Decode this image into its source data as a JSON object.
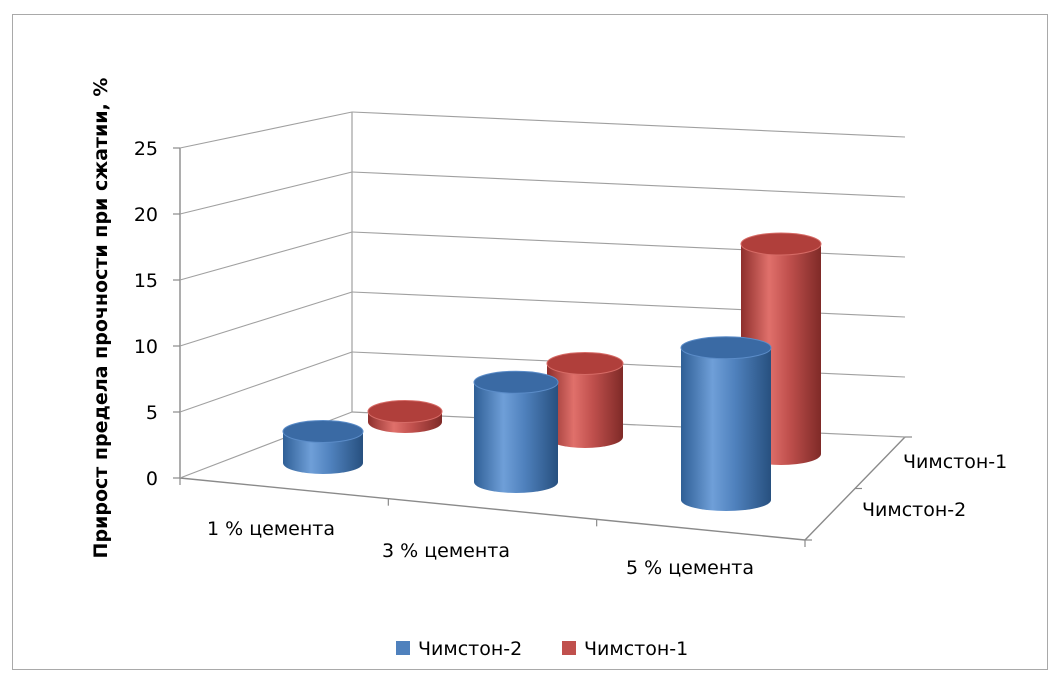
{
  "chart_data": {
    "type": "bar",
    "categories": [
      "1 % цемента",
      "3 % цемента",
      "5 % цемента"
    ],
    "series": [
      {
        "name": "Чимстон-2",
        "values": [
          3,
          9.5,
          14.5
        ],
        "color": "#4f81bd"
      },
      {
        "name": "Чимстон-1",
        "values": [
          1,
          7,
          20
        ],
        "color": "#c0504d"
      }
    ],
    "ylabel": "Прирост предела прочности при сжатии, %",
    "ylim": [
      0,
      25
    ],
    "yticks": [
      "0",
      "5",
      "10",
      "15",
      "20",
      "25"
    ],
    "depth_labels": [
      "Чимстон-1",
      "Чимстон-2"
    ],
    "grid": true,
    "legend": "bottom",
    "bar_shape": "cylinder-3d"
  }
}
